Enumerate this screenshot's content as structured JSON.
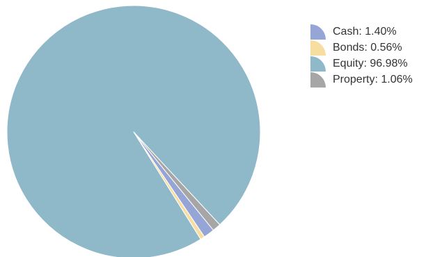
{
  "chart_data": {
    "type": "pie",
    "title": "",
    "start_direction": "bottom-right",
    "slices": [
      {
        "label": "Cash",
        "value": 1.4,
        "display": "Cash: 1.40%",
        "color": "#95a5d6"
      },
      {
        "label": "Bonds",
        "value": 0.56,
        "display": "Bonds: 0.56%",
        "color": "#f7dd9f"
      },
      {
        "label": "Equity",
        "value": 96.98,
        "display": "Equity: 96.98%",
        "color": "#8fb8c8"
      },
      {
        "label": "Property",
        "value": 1.06,
        "display": "Property: 1.06%",
        "color": "#a6a6a6"
      }
    ],
    "legend_position": "top-right"
  }
}
